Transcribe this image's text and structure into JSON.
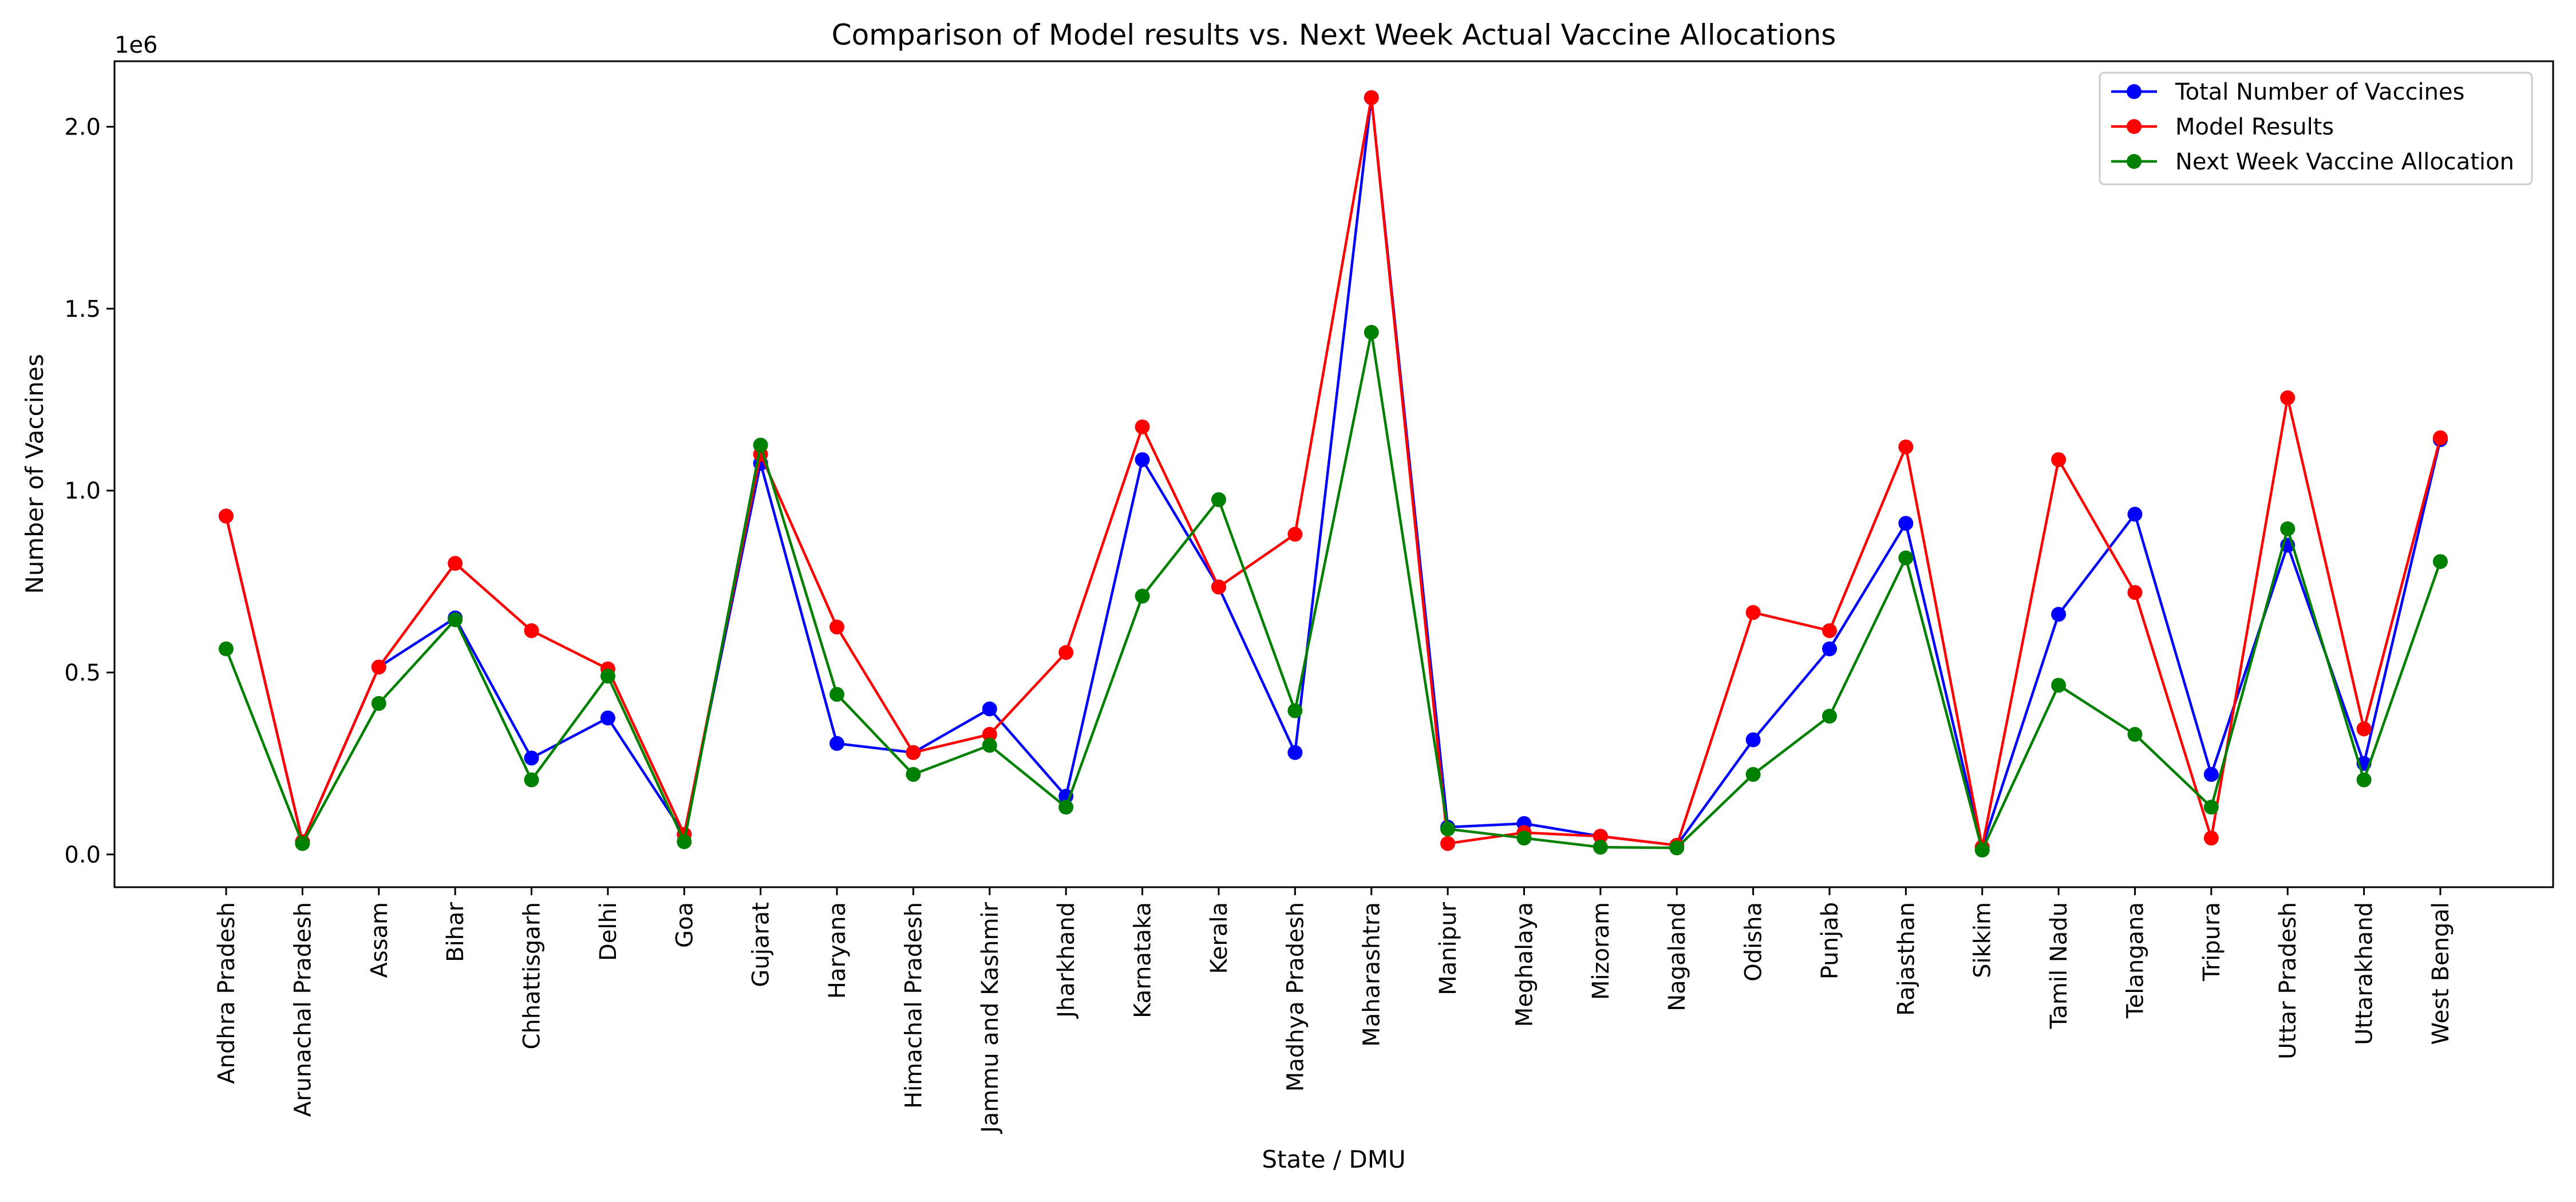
{
  "chart_data": {
    "type": "line",
    "title": "Comparison of Model results vs. Next Week Actual Vaccine Allocations",
    "xlabel": "State / DMU",
    "ylabel": "Number of Vaccines",
    "y_offset_label": "1e6",
    "y_scale": 1000000,
    "ylim": [
      -90000,
      2180000
    ],
    "yticks": [
      0,
      500000,
      1000000,
      1500000,
      2000000
    ],
    "ytick_labels": [
      "0.0",
      "0.5",
      "1.0",
      "1.5",
      "2.0"
    ],
    "grid": false,
    "legend_position": "top-right",
    "categories": [
      "Andhra Pradesh",
      "Arunachal Pradesh",
      "Assam",
      "Bihar",
      "Chhattisgarh",
      "Delhi",
      "Goa",
      "Gujarat",
      "Haryana",
      "Himachal Pradesh",
      "Jammu and Kashmir",
      "Jharkhand",
      "Karnataka",
      "Kerala",
      "Madhya Pradesh",
      "Maharashtra",
      "Manipur",
      "Meghalaya",
      "Mizoram",
      "Nagaland",
      "Odisha",
      "Punjab",
      "Rajasthan",
      "Sikkim",
      "Tamil Nadu",
      "Telangana",
      "Tripura",
      "Uttar Pradesh",
      "Uttarakhand",
      "West Bengal"
    ],
    "series": [
      {
        "name": "Total Number of Vaccines",
        "color": "#0000ff",
        "values": [
          930000,
          35000,
          515000,
          650000,
          265000,
          375000,
          55000,
          1075000,
          305000,
          280000,
          400000,
          160000,
          1085000,
          735000,
          280000,
          2080000,
          75000,
          85000,
          50000,
          25000,
          315000,
          565000,
          910000,
          20000,
          660000,
          935000,
          220000,
          850000,
          250000,
          1140000
        ]
      },
      {
        "name": "Model Results",
        "color": "#ff0000",
        "values": [
          930000,
          35000,
          515000,
          800000,
          615000,
          510000,
          55000,
          1100000,
          625000,
          280000,
          330000,
          555000,
          1175000,
          735000,
          880000,
          2080000,
          30000,
          60000,
          50000,
          25000,
          665000,
          615000,
          1120000,
          20000,
          1085000,
          720000,
          45000,
          1255000,
          345000,
          1145000
        ]
      },
      {
        "name": "Next Week Vaccine Allocation",
        "color": "#008000",
        "values": [
          565000,
          30000,
          415000,
          645000,
          205000,
          490000,
          35000,
          1125000,
          440000,
          220000,
          300000,
          130000,
          710000,
          975000,
          395000,
          1435000,
          70000,
          45000,
          20000,
          18000,
          220000,
          380000,
          815000,
          12000,
          465000,
          330000,
          130000,
          895000,
          205000,
          805000
        ]
      }
    ]
  }
}
